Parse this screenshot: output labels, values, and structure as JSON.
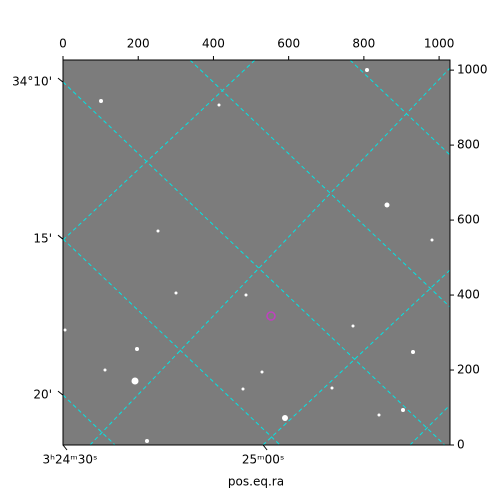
{
  "chart_data": {
    "type": "image",
    "xlabel": "pos.eq.ra",
    "xlim": [
      0,
      1029
    ],
    "xticks": [
      0,
      200,
      400,
      600,
      800,
      1000
    ],
    "ylim": [
      0,
      1027
    ],
    "yticks": [
      0,
      200,
      400,
      600,
      800,
      1000
    ],
    "ra_ticks": [
      {
        "value": 0,
        "label": "3ʰ24ᵐ30ˢ"
      },
      {
        "value": 532,
        "label": "25ᵐ00ˢ"
      }
    ],
    "dec_ticks": [
      {
        "value": 968,
        "label": "34°10'"
      },
      {
        "value": 549,
        "label": "15'"
      },
      {
        "value": 133,
        "label": "20'"
      }
    ],
    "grid_color": "#00e5e5"
  }
}
